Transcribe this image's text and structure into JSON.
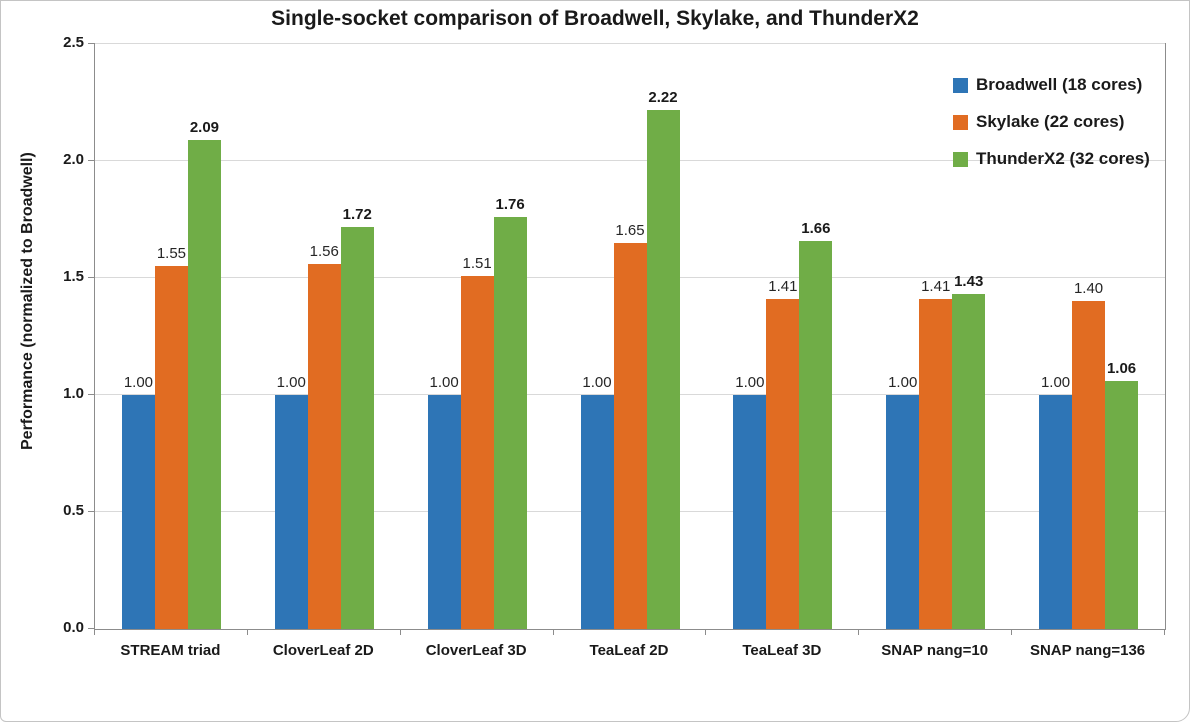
{
  "figure": {
    "title": "Single-socket comparison of Broadwell, Skylake, and ThunderX2"
  },
  "chart_data": {
    "type": "bar",
    "title": "Single-socket comparison of Broadwell, Skylake, and ThunderX2",
    "xlabel": "",
    "ylabel": "Performance  (normalized to Broadwell)",
    "ylim": [
      0,
      2.5
    ],
    "ytick_step": 0.5,
    "yticks": [
      "0.0",
      "0.5",
      "1.0",
      "1.5",
      "2.0",
      "2.5"
    ],
    "grid": true,
    "legend_position": "top-right",
    "categories": [
      "STREAM triad",
      "CloverLeaf 2D",
      "CloverLeaf 3D",
      "TeaLeaf 2D",
      "TeaLeaf 3D",
      "SNAP nang=10",
      "SNAP nang=136"
    ],
    "series": [
      {
        "name": "Broadwell (18 cores)",
        "color": "#2E75B6",
        "bold_labels": false,
        "values": [
          1.0,
          1.0,
          1.0,
          1.0,
          1.0,
          1.0,
          1.0
        ]
      },
      {
        "name": "Skylake (22 cores)",
        "color": "#E16C22",
        "bold_labels": false,
        "values": [
          1.55,
          1.56,
          1.51,
          1.65,
          1.41,
          1.41,
          1.4
        ]
      },
      {
        "name": "ThunderX2 (32 cores)",
        "color": "#70AD47",
        "bold_labels": true,
        "values": [
          2.09,
          1.72,
          1.76,
          2.22,
          1.66,
          1.43,
          1.06
        ]
      }
    ]
  }
}
